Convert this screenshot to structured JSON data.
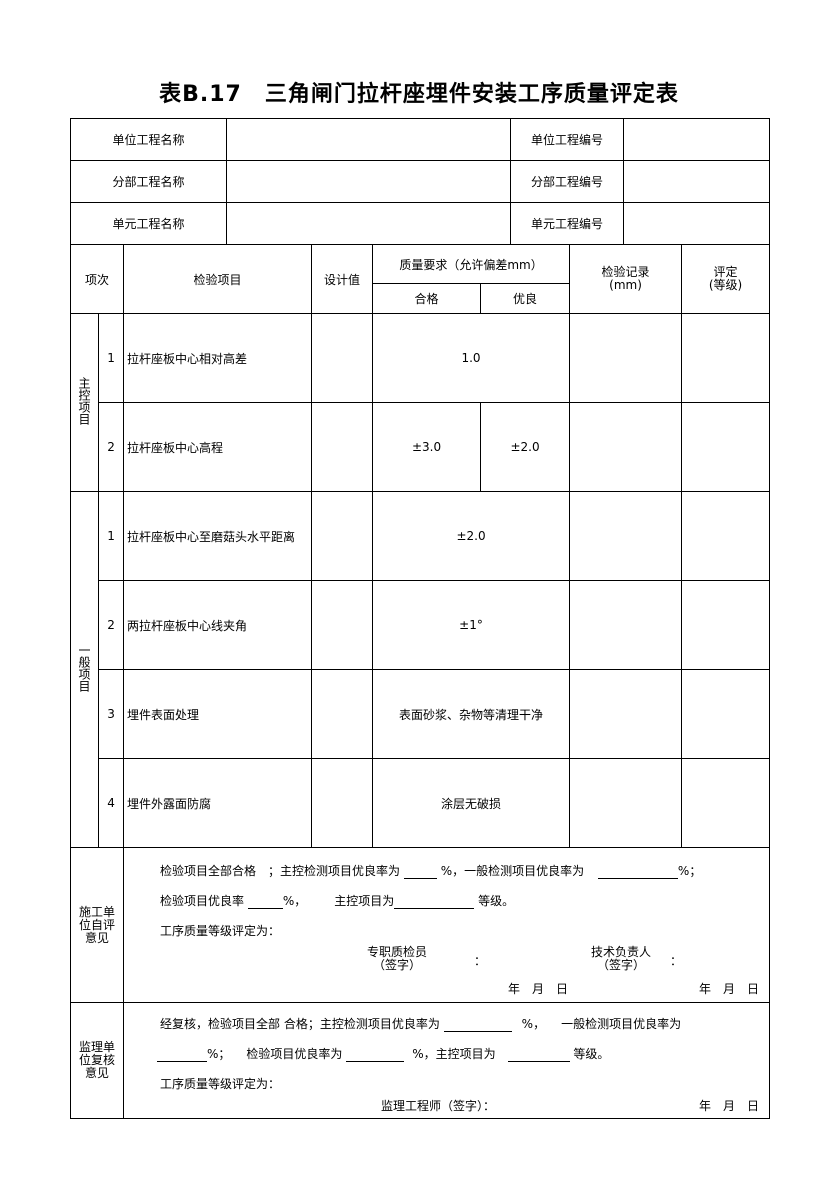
{
  "title": "表B.17　三角闸门拉杆座埋件安装工序质量评定表",
  "info": [
    {
      "label": "单位工程名称",
      "value": "",
      "label2": "单位工程编号",
      "value2": ""
    },
    {
      "label": "分部工程名称",
      "value": "",
      "label2": "分部工程编号",
      "value2": ""
    },
    {
      "label": "单元工程名称",
      "value": "",
      "label2": "单元工程编号",
      "value2": ""
    }
  ],
  "header": {
    "index": "项次",
    "item": "检验项目",
    "design": "设计值",
    "quality": "质量要求（允许偏差mm）",
    "pass": "合格",
    "good": "优良",
    "record": "检验记录",
    "record_unit": "(mm)",
    "grade": "评定",
    "grade_unit": "(等级)"
  },
  "main_group": "主控项目",
  "general_group": "一般项目",
  "rows": [
    {
      "no": "1",
      "item": "拉杆座板中心相对高差",
      "req": "1.0"
    },
    {
      "no": "2",
      "item": "拉杆座板中心高程",
      "pass": "±3.0",
      "good": "±2.0"
    },
    {
      "no": "1",
      "item": "拉杆座板中心至磨菇头水平距离",
      "req": "±2.0"
    },
    {
      "no": "2",
      "item": "两拉杆座板中心线夹角",
      "req": "±1°"
    },
    {
      "no": "3",
      "item": "埋件表面处理",
      "req": "表面砂浆、杂物等清理干净"
    },
    {
      "no": "4",
      "item": "埋件外露面防腐",
      "req": "涂层无破损"
    }
  ],
  "contractor": {
    "label": "施工单位自评意见",
    "l1a": "检验项目全部合格　；主控检测项目优良率为",
    "l1b": "%，一般检测项目优良率为",
    "l1c": "%；",
    "l2a": "检验项目优良率",
    "l2b": "%，",
    "l2c": "主控项目为",
    "l2d": "等级。",
    "l3": "工序质量等级评定为：",
    "inspector": "专职质检员",
    "sign": "（签字）",
    "colon": "：",
    "tech": "技术负责人",
    "date": "年　月　日"
  },
  "supervisor": {
    "label": "监理单位复核意见",
    "l1a": "经复核，检验项目全部 合格；主控检测项目优良率为",
    "l1b": "%，",
    "l1c": "一般检测项目优良率为",
    "l2a": "%；",
    "l2b": "检验项目优良率为",
    "l2c": "%，主控项目为",
    "l2d": "等级。",
    "l3": "工序质量等级评定为：",
    "engineer": "监理工程师（签字）：",
    "date": "年　月　日"
  }
}
